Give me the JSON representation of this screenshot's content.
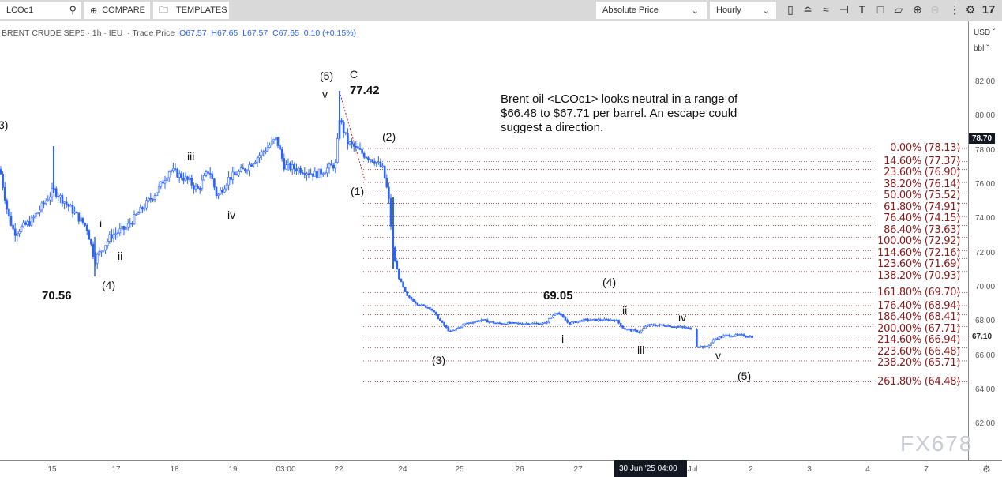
{
  "toolbar": {
    "symbol": "LCOc1",
    "compare": "COMPARE",
    "templates": "TEMPLATES",
    "price_mode": "Absolute Price",
    "interval": "Hourly",
    "icons": [
      "candles-icon",
      "indicators-icon",
      "studies-icon",
      "draw-line-icon",
      "text-icon",
      "rectangle-icon",
      "polygon-icon",
      "zoom-in-icon",
      "zoom-out-icon",
      "more-icon",
      "settings-icon",
      "tradingview-logo-icon"
    ]
  },
  "legend": {
    "name": "BRENT CRUDE SEP5",
    "interval": "1h",
    "exchange": "IEU",
    "type": "Trade Price",
    "open": "O67.57",
    "high": "H67.65",
    "low": "L67.57",
    "close": "C67.65",
    "change": "0.10 (+0.15%)"
  },
  "annotation": "Brent oil <LCOc1> looks neutral in a range of $66.48 to $67.71 per barrel. An escape could suggest a direction.",
  "currency": "USD",
  "unit": "bbl",
  "watermark": "FX678",
  "chart_data": {
    "type": "candlestick",
    "y_ticks": [
      "82.00",
      "80.00",
      "78.00",
      "76.00",
      "74.00",
      "72.00",
      "70.00",
      "68.00",
      "66.00",
      "64.00",
      "62.00"
    ],
    "ylim": [
      61,
      84
    ],
    "x_ticks": [
      "15",
      "17",
      "18",
      "19",
      "03:00",
      "22",
      "24",
      "25",
      "26",
      "27",
      "Jul",
      "2",
      "3",
      "4",
      "7"
    ],
    "crosshair_x": "30 Jun '25  04:00",
    "last_price": "78.70",
    "current_price": "67.10",
    "closes": [
      76.9,
      74.3,
      73.2,
      73.9,
      75.7,
      74.6,
      73.5,
      71.6,
      73,
      73.5,
      74.6,
      75.7,
      76.9,
      76.2,
      75.7,
      76.9,
      75.3,
      76.4,
      76.9,
      77.8,
      78.7,
      77.1,
      76.9,
      76.6,
      77.2,
      79.9,
      78.5,
      77.8,
      77.4,
      76.9,
      75.3,
      72,
      70.6,
      69.5,
      69,
      68.8,
      67.9,
      67.4,
      67.9,
      68.1,
      67.9,
      67.9,
      67.9,
      67.9,
      68.6,
      67.9,
      68.1,
      68.1,
      68.1,
      67.6,
      67.4,
      67.8,
      67.8,
      67.7,
      67.6,
      66.6,
      66.5,
      67,
      67.2,
      67.2,
      67.1
    ],
    "fib_levels": [
      {
        "pct": "0.00%",
        "price": 78.13
      },
      {
        "pct": "14.60%",
        "price": 77.37
      },
      {
        "pct": "23.60%",
        "price": 76.9
      },
      {
        "pct": "38.20%",
        "price": 76.14
      },
      {
        "pct": "50.00%",
        "price": 75.52
      },
      {
        "pct": "61.80%",
        "price": 74.91
      },
      {
        "pct": "76.40%",
        "price": 74.15
      },
      {
        "pct": "86.40%",
        "price": 73.63
      },
      {
        "pct": "100.00%",
        "price": 72.92
      },
      {
        "pct": "114.60%",
        "price": 72.16
      },
      {
        "pct": "123.60%",
        "price": 71.69
      },
      {
        "pct": "138.20%",
        "price": 70.93
      },
      {
        "pct": "161.80%",
        "price": 69.7
      },
      {
        "pct": "176.40%",
        "price": 68.94
      },
      {
        "pct": "186.40%",
        "price": 68.41
      },
      {
        "pct": "200.00%",
        "price": 67.71
      },
      {
        "pct": "214.60%",
        "price": 66.94
      },
      {
        "pct": "223.60%",
        "price": 66.48
      },
      {
        "pct": "238.20%",
        "price": 65.71
      },
      {
        "pct": "261.80%",
        "price": 64.48
      }
    ],
    "fib_color": "#8b1a1a",
    "candle_color": "#2962ff",
    "wave_labels": [
      "3)",
      "i",
      "ii",
      "(4)",
      "70.56",
      "iii",
      "iv",
      "(5)",
      "v",
      "C",
      "77.42",
      "(2)",
      "(1)",
      "(3)",
      "i",
      "69.05",
      "(4)",
      "ii",
      "iii",
      "iv",
      "v",
      "(5)"
    ]
  }
}
